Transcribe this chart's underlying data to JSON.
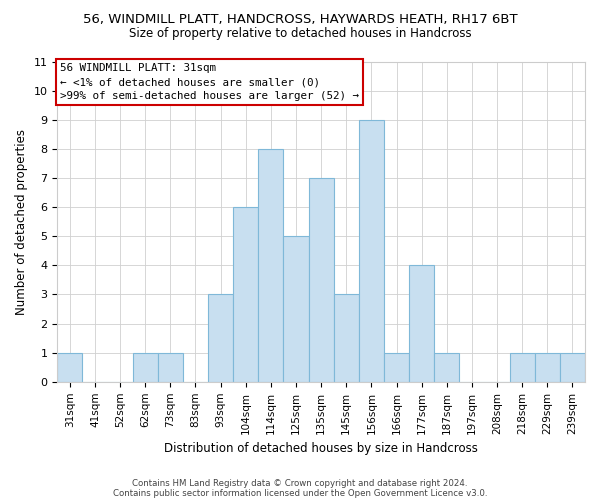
{
  "title_line1": "56, WINDMILL PLATT, HANDCROSS, HAYWARDS HEATH, RH17 6BT",
  "title_line2": "Size of property relative to detached houses in Handcross",
  "xlabel": "Distribution of detached houses by size in Handcross",
  "ylabel": "Number of detached properties",
  "bin_labels": [
    "31sqm",
    "41sqm",
    "52sqm",
    "62sqm",
    "73sqm",
    "83sqm",
    "93sqm",
    "104sqm",
    "114sqm",
    "125sqm",
    "135sqm",
    "145sqm",
    "156sqm",
    "166sqm",
    "177sqm",
    "187sqm",
    "197sqm",
    "208sqm",
    "218sqm",
    "229sqm",
    "239sqm"
  ],
  "bar_heights": [
    1,
    0,
    0,
    1,
    1,
    0,
    3,
    6,
    8,
    5,
    7,
    3,
    9,
    1,
    4,
    1,
    0,
    0,
    1,
    1,
    1
  ],
  "bar_color": "#c8dff0",
  "bar_edge_color": "#7fb8d8",
  "ylim": [
    0,
    11
  ],
  "yticks": [
    0,
    1,
    2,
    3,
    4,
    5,
    6,
    7,
    8,
    9,
    10,
    11
  ],
  "annotation_line1": "56 WINDMILL PLATT: 31sqm",
  "annotation_line2": "← <1% of detached houses are smaller (0)",
  "annotation_line3": ">99% of semi-detached houses are larger (52) →",
  "footer_line1": "Contains HM Land Registry data © Crown copyright and database right 2024.",
  "footer_line2": "Contains public sector information licensed under the Open Government Licence v3.0.",
  "grid_color": "#d0d0d0",
  "background_color": "#ffffff",
  "ann_box_facecolor": "#ffffff",
  "ann_box_edgecolor": "#cc0000"
}
